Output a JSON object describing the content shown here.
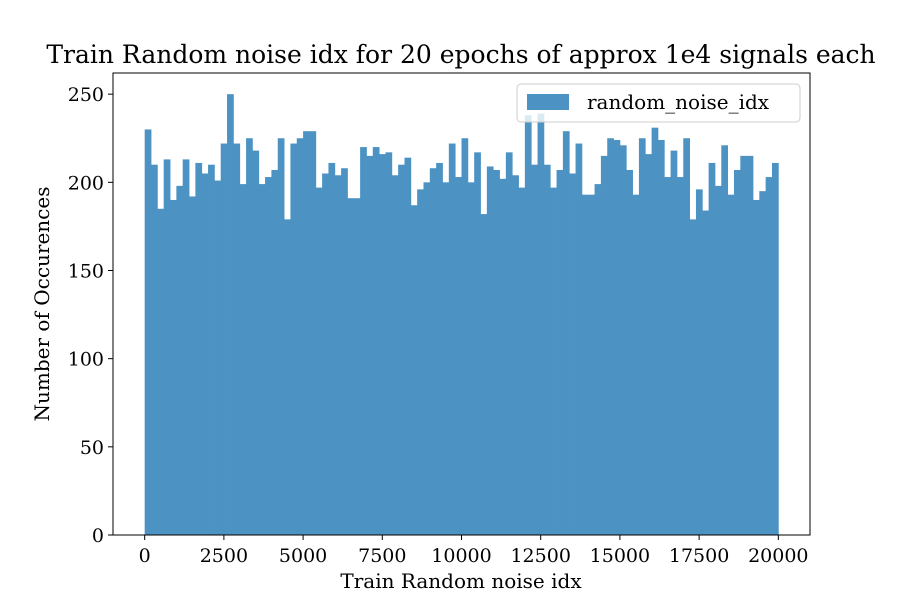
{
  "chart_data": {
    "type": "bar",
    "title": "Train Random noise idx for 20 epochs of approx 1e4 signals each",
    "xlabel": "Train Random noise idx",
    "ylabel": "Number of Occurences",
    "xlim": [
      -1000,
      21000
    ],
    "ylim": [
      0,
      262
    ],
    "xticks": [
      0,
      2500,
      5000,
      7500,
      10000,
      12500,
      15000,
      17500,
      20000
    ],
    "yticks": [
      0,
      50,
      100,
      150,
      200,
      250
    ],
    "xtick_labels": [
      "0",
      "2500",
      "5000",
      "7500",
      "10000",
      "12500",
      "15000",
      "17500",
      "20000"
    ],
    "ytick_labels": [
      "0",
      "50",
      "100",
      "150",
      "200",
      "250"
    ],
    "bin_range": [
      0,
      20000
    ],
    "bin_width": 200,
    "grid": false,
    "legend_position": "top-right",
    "bar_color": "#4c93c3",
    "series": [
      {
        "name": "random_noise_idx",
        "values": [
          230,
          210,
          185,
          213,
          190,
          198,
          213,
          192,
          211,
          205,
          210,
          201,
          222,
          250,
          222,
          199,
          225,
          218,
          199,
          203,
          207,
          225,
          179,
          222,
          225,
          229,
          229,
          197,
          205,
          211,
          204,
          208,
          191,
          191,
          220,
          215,
          220,
          216,
          217,
          204,
          210,
          214,
          187,
          196,
          200,
          208,
          211,
          200,
          222,
          203,
          225,
          200,
          217,
          182,
          209,
          207,
          202,
          217,
          204,
          197,
          238,
          210,
          239,
          210,
          197,
          207,
          229,
          205,
          222,
          193,
          193,
          199,
          215,
          225,
          224,
          221,
          207,
          193,
          225,
          216,
          231,
          224,
          203,
          218,
          203,
          225,
          179,
          196,
          184,
          211,
          198,
          221,
          193,
          207,
          215,
          215,
          190,
          195,
          203,
          211
        ]
      }
    ]
  }
}
